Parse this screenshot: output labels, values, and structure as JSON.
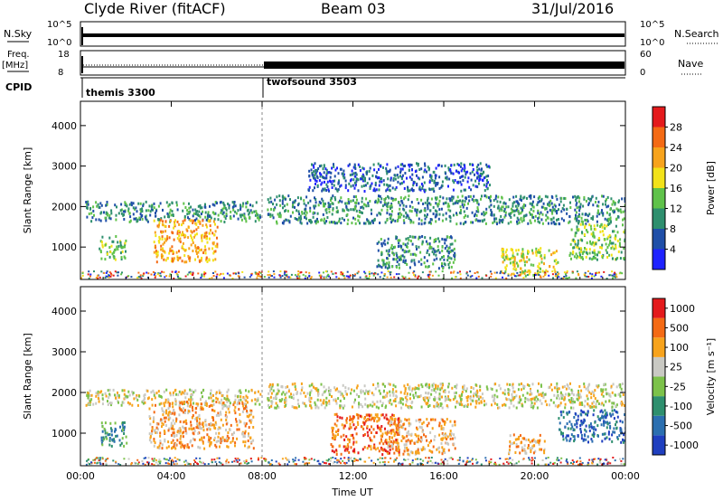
{
  "header": {
    "title": "Clyde River (fitACF)",
    "beam": "Beam 03",
    "date": "31/Jul/2016"
  },
  "strip": {
    "nsky_label": "N.Sky",
    "nsky_ticks": [
      "10^5",
      "10^0"
    ],
    "nsearch_label": "N.Search",
    "nsearch_ticks": [
      "10^5",
      "10^0"
    ],
    "freq_label": "Freq.",
    "freq_unit": "[MHz]",
    "freq_ticks": [
      "18",
      "8"
    ],
    "nave_label": "Nave",
    "nave_ticks": [
      "60",
      "0"
    ],
    "cpid_label": "CPID",
    "cpid_entries": [
      {
        "name": "themis 3300",
        "start_hour": 0
      },
      {
        "name": "twofsound 3503",
        "start_hour": 8
      }
    ]
  },
  "chart_data": [
    {
      "type": "heatmap",
      "name": "power",
      "ylabel": "Slant Range [km]",
      "xlabel": "Time UT",
      "x_ticks": [
        "00:00",
        "04:00",
        "08:00",
        "12:00",
        "16:00",
        "20:00",
        "00:00"
      ],
      "xlim_hours": [
        0,
        24
      ],
      "y_ticks": [
        1000,
        2000,
        3000,
        4000
      ],
      "ylim_km": [
        200,
        4600
      ],
      "colorbar": {
        "label": "Power [dB]",
        "ticks": [
          "4",
          "8",
          "12",
          "16",
          "20",
          "24",
          "28"
        ],
        "colors": [
          "#1e22ff",
          "#1f4fa8",
          "#2e8f6e",
          "#5fc24a",
          "#f2e21a",
          "#f7a31c",
          "#f46a14",
          "#e41a1c"
        ]
      },
      "echo_regions": [
        {
          "t0": 0.2,
          "t1": 7.9,
          "r0": 1650,
          "r1": 2150,
          "level": 2
        },
        {
          "t0": 0.8,
          "t1": 2.0,
          "r0": 700,
          "r1": 1300,
          "level": 3
        },
        {
          "t0": 3.2,
          "t1": 6.0,
          "r0": 650,
          "r1": 1700,
          "level": 5
        },
        {
          "t0": 8.2,
          "t1": 24,
          "r0": 1600,
          "r1": 2300,
          "level": 2
        },
        {
          "t0": 10.0,
          "t1": 18.0,
          "r0": 2400,
          "r1": 3100,
          "level": 1
        },
        {
          "t0": 13.0,
          "t1": 16.5,
          "r0": 500,
          "r1": 1300,
          "level": 2
        },
        {
          "t0": 18.5,
          "t1": 21.0,
          "r0": 300,
          "r1": 1000,
          "level": 4
        },
        {
          "t0": 21.5,
          "t1": 24,
          "r0": 700,
          "r1": 1600,
          "level": 3
        }
      ]
    },
    {
      "type": "heatmap",
      "name": "velocity",
      "ylabel": "Slant Range [km]",
      "xlabel": "Time UT",
      "x_ticks": [
        "00:00",
        "04:00",
        "08:00",
        "12:00",
        "16:00",
        "20:00",
        "00:00"
      ],
      "xlim_hours": [
        0,
        24
      ],
      "y_ticks": [
        1000,
        2000,
        3000,
        4000
      ],
      "ylim_km": [
        200,
        4600
      ],
      "colorbar": {
        "label": "Velocity [m s⁻¹]",
        "ticks": [
          "1000",
          "500",
          "100",
          "25",
          "-25",
          "-100",
          "-500",
          "-1000"
        ],
        "colors": [
          "#1f3fbf",
          "#2b6fb0",
          "#2e8f6e",
          "#7cc24a",
          "#c9c9c3",
          "#f7a31c",
          "#f46a14",
          "#e41a1c"
        ]
      },
      "echo_regions": [
        {
          "t0": 0.2,
          "t1": 7.9,
          "r0": 1700,
          "r1": 2100,
          "level": 4
        },
        {
          "t0": 0.8,
          "t1": 2.0,
          "r0": 700,
          "r1": 1300,
          "level": 2
        },
        {
          "t0": 3.0,
          "t1": 7.6,
          "r0": 650,
          "r1": 1800,
          "level": 5
        },
        {
          "t0": 8.2,
          "t1": 24,
          "r0": 1650,
          "r1": 2250,
          "level": 4
        },
        {
          "t0": 11.0,
          "t1": 14.0,
          "r0": 500,
          "r1": 1500,
          "level": 6
        },
        {
          "t0": 13.5,
          "t1": 16.5,
          "r0": 500,
          "r1": 1400,
          "level": 5
        },
        {
          "t0": 18.8,
          "t1": 20.5,
          "r0": 500,
          "r1": 1000,
          "level": 5
        },
        {
          "t0": 21.0,
          "t1": 24,
          "r0": 800,
          "r1": 1600,
          "level": 1
        }
      ]
    }
  ]
}
